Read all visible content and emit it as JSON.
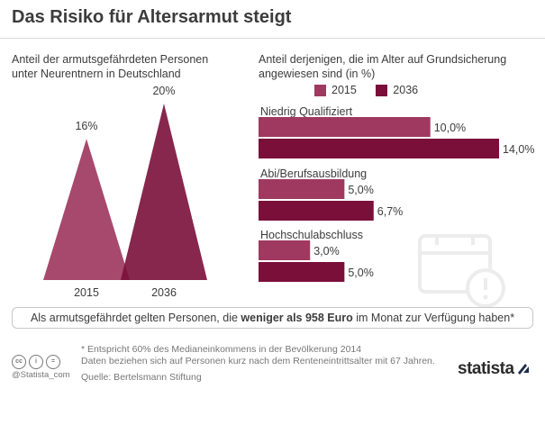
{
  "header": {
    "title": "Das Risiko für Altersarmut steigt"
  },
  "left_panel": {
    "subtitle_line1": "Anteil der armutsgefährdeten Personen",
    "subtitle_line2": "unter Neurentnern in Deutschland"
  },
  "right_panel": {
    "subtitle_line1": "Anteil derjenigen, die im Alter auf Grundsicherung",
    "subtitle_line2": "angewiesen sind",
    "subtitle_unit": "(in %)"
  },
  "colors": {
    "year_2015": "#a0395f",
    "year_2036": "#7a0f3a"
  },
  "chart_data": [
    {
      "type": "bar",
      "categories": [
        "2015",
        "2036"
      ],
      "values": [
        16,
        20
      ],
      "value_labels": [
        "16%",
        "20%"
      ],
      "ylim": [
        0,
        20
      ]
    },
    {
      "type": "bar",
      "orientation": "horizontal",
      "categories": [
        "Niedrig Qualifiziert",
        "Abi/Berufsausbildung",
        "Hochschulabschluss"
      ],
      "series": [
        {
          "name": "2015",
          "values": [
            10.0,
            5.0,
            3.0
          ],
          "labels": [
            "10,0%",
            "5,0%",
            "3,0%"
          ]
        },
        {
          "name": "2036",
          "values": [
            14.0,
            6.7,
            5.0
          ],
          "labels": [
            "14,0%",
            "6,7%",
            "5,0%"
          ]
        }
      ],
      "xlim": [
        0,
        14
      ],
      "legend": "top"
    }
  ],
  "footnote_box": {
    "before": "Als armutsgefährdet gelten Personen, die ",
    "bold": "weniger als 958 Euro",
    "after": " im Monat zur Verfügung haben*"
  },
  "source": {
    "line1": "* Entspricht 60% des Medianeinkommens in der Bevölkerung 2014",
    "line2": "Daten beziehen sich auf Personen kurz nach dem Renteneintrittsalter mit 67 Jahren.",
    "line3": "Quelle: Bertelsmann Stiftung"
  },
  "credits": {
    "handle": "@Statista_com",
    "cc": "cc",
    "by": "i",
    "nd": "="
  },
  "brand": "statista"
}
